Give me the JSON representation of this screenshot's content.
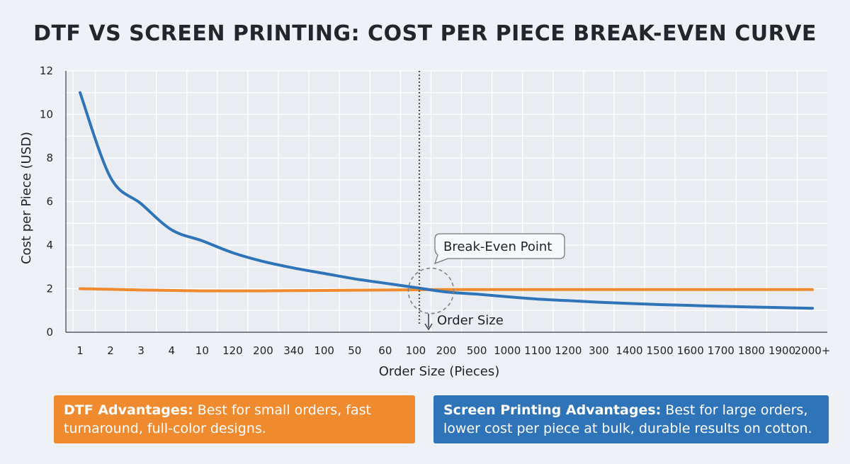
{
  "colors": {
    "dtf": "#ef8a2e",
    "screen": "#2f74b8",
    "background": "#eef1f5",
    "grid": "#ffffff"
  },
  "chart_data": {
    "type": "line",
    "title": "DTF VS SCREEN PRINTING: COST PER PIECE BREAK-EVEN CURVE",
    "xlabel": "Order Size (Pieces)",
    "ylabel": "Cost per Piece (USD)",
    "ylim": [
      0,
      12
    ],
    "yticks": [
      0,
      2,
      4,
      6,
      8,
      10,
      12
    ],
    "categories": [
      "1",
      "2",
      "3",
      "4",
      "10",
      "120",
      "200",
      "340",
      "100",
      "50",
      "60",
      "100",
      "200",
      "500",
      "1000",
      "1100",
      "1200",
      "300",
      "1400",
      "1500",
      "1600",
      "1700",
      "1800",
      "1900",
      "2000+"
    ],
    "grid": true,
    "legend": "none",
    "series": [
      {
        "key": "blue",
        "color": "#2f74b8",
        "values": [
          11.0,
          7.1,
          5.9,
          4.7,
          4.2,
          3.65,
          3.25,
          2.95,
          2.7,
          2.45,
          2.25,
          2.05,
          1.85,
          1.75,
          1.63,
          1.52,
          1.45,
          1.38,
          1.32,
          1.27,
          1.23,
          1.19,
          1.16,
          1.13,
          1.1
        ]
      },
      {
        "key": "orange",
        "color": "#ef8a2e",
        "values": [
          2.0,
          1.97,
          1.94,
          1.92,
          1.9,
          1.9,
          1.9,
          1.91,
          1.92,
          1.93,
          1.94,
          1.95,
          1.96,
          1.96,
          1.96,
          1.96,
          1.96,
          1.96,
          1.96,
          1.96,
          1.96,
          1.96,
          1.96,
          1.96,
          1.96
        ]
      }
    ],
    "annotations": {
      "break_even_label": "Break-Even Point",
      "order_size_label": "Order Size",
      "break_even_category_index": 11.5,
      "break_even_value": 1.9
    }
  },
  "advantages": {
    "dtf": {
      "heading": "DTF Advantages:",
      "text": " Best for small orders, fast turnaround, full-color designs."
    },
    "screen": {
      "heading": "Screen Printing Advantages:",
      "text": " Best for large orders, lower cost per piece at bulk, durable results on cotton."
    }
  }
}
